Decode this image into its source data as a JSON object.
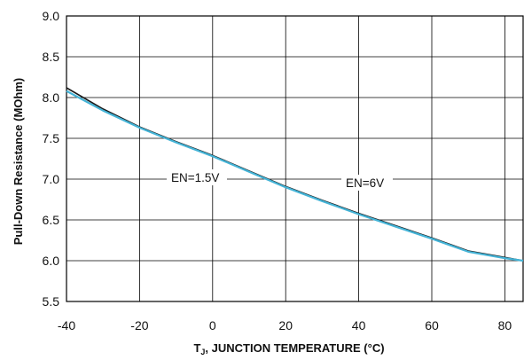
{
  "chart_data": {
    "type": "line",
    "xlabel": {
      "main": "T",
      "sub": "J",
      "rest": ", JUNCTION TEMPERATURE (°C)"
    },
    "ylabel": "Pull-Down Resistance (MOhm)",
    "xlim": [
      -40,
      85
    ],
    "ylim": [
      5.5,
      9.0
    ],
    "x_ticks": [
      "-40",
      "-20",
      "0",
      "20",
      "40",
      "60",
      "80"
    ],
    "y_ticks": [
      "5.5",
      "6.0",
      "6.5",
      "7.0",
      "7.5",
      "8.0",
      "8.5",
      "9.0"
    ],
    "grid": true,
    "series": [
      {
        "name": "EN=1.5V",
        "color": "#1a1a1a",
        "x": [
          -40,
          -30,
          -20,
          -10,
          0,
          10,
          20,
          30,
          40,
          50,
          60,
          70,
          80,
          85
        ],
        "y": [
          8.12,
          7.86,
          7.64,
          7.46,
          7.29,
          7.1,
          6.91,
          6.74,
          6.58,
          6.43,
          6.28,
          6.12,
          6.04,
          6.0
        ]
      },
      {
        "name": "EN=6V",
        "color": "#44b3d6",
        "x": [
          -40,
          -30,
          -20,
          -10,
          0,
          10,
          20,
          30,
          40,
          50,
          60,
          70,
          80,
          85
        ],
        "y": [
          8.08,
          7.84,
          7.63,
          7.45,
          7.28,
          7.09,
          6.9,
          6.73,
          6.57,
          6.42,
          6.27,
          6.11,
          6.03,
          6.0
        ]
      }
    ],
    "annotations": [
      "EN=1.5V",
      "EN=6V"
    ]
  }
}
